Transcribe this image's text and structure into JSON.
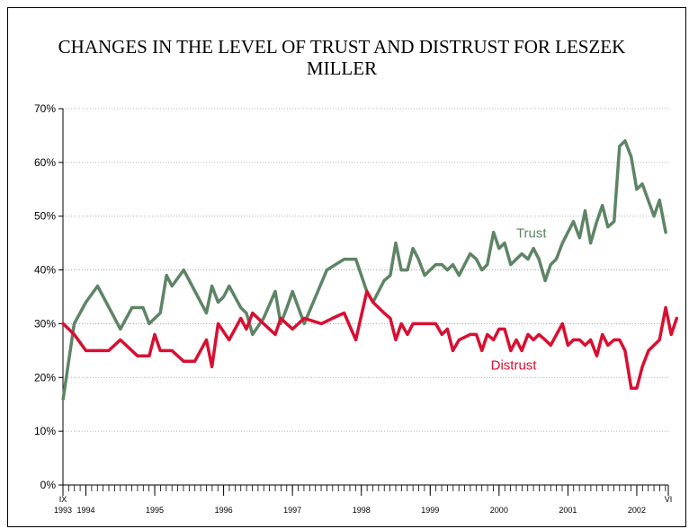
{
  "chart_data": {
    "type": "line",
    "title": "CHANGES IN THE LEVEL OF TRUST AND DISTRUST FOR LESZEK MILLER",
    "ylim": [
      0,
      70
    ],
    "yticks": [
      "0%",
      "10%",
      "20%",
      "30%",
      "40%",
      "50%",
      "60%",
      "70%"
    ],
    "grid": true,
    "xlim": [
      1993.667,
      2002.458
    ],
    "xticks": [
      {
        "x": 1993.667,
        "top": "IX",
        "bottom": "1993"
      },
      {
        "x": 1994.0,
        "top": "",
        "bottom": "1994"
      },
      {
        "x": 1995.0,
        "top": "",
        "bottom": "1995"
      },
      {
        "x": 1996.0,
        "top": "",
        "bottom": "1996"
      },
      {
        "x": 1997.0,
        "top": "",
        "bottom": "1997"
      },
      {
        "x": 1998.0,
        "top": "",
        "bottom": "1998"
      },
      {
        "x": 1999.0,
        "top": "",
        "bottom": "1999"
      },
      {
        "x": 2000.0,
        "top": "",
        "bottom": "2000"
      },
      {
        "x": 2001.0,
        "top": "",
        "bottom": "2001"
      },
      {
        "x": 2002.0,
        "top": "",
        "bottom": "2002"
      },
      {
        "x": 2002.458,
        "top": "VI",
        "bottom": ""
      }
    ],
    "series": [
      {
        "name": "Trust",
        "color": "#5e8466",
        "label_at": [
          2000.25,
          46
        ],
        "points": [
          [
            1993.67,
            16
          ],
          [
            1993.83,
            30
          ],
          [
            1994.0,
            34
          ],
          [
            1994.17,
            37
          ],
          [
            1994.5,
            29
          ],
          [
            1994.67,
            33
          ],
          [
            1994.83,
            33
          ],
          [
            1994.92,
            30
          ],
          [
            1995.08,
            32
          ],
          [
            1995.17,
            39
          ],
          [
            1995.25,
            37
          ],
          [
            1995.42,
            40
          ],
          [
            1995.75,
            32
          ],
          [
            1995.83,
            37
          ],
          [
            1995.92,
            34
          ],
          [
            1996.0,
            35
          ],
          [
            1996.08,
            37
          ],
          [
            1996.25,
            33
          ],
          [
            1996.33,
            32
          ],
          [
            1996.42,
            28
          ],
          [
            1996.58,
            31
          ],
          [
            1996.75,
            36
          ],
          [
            1996.83,
            30
          ],
          [
            1996.92,
            33
          ],
          [
            1997.0,
            36
          ],
          [
            1997.17,
            30
          ],
          [
            1997.5,
            40
          ],
          [
            1997.75,
            42
          ],
          [
            1997.92,
            42
          ],
          [
            1998.08,
            36
          ],
          [
            1998.17,
            34
          ],
          [
            1998.33,
            38
          ],
          [
            1998.42,
            39
          ],
          [
            1998.5,
            45
          ],
          [
            1998.58,
            40
          ],
          [
            1998.67,
            40
          ],
          [
            1998.75,
            44
          ],
          [
            1998.83,
            42
          ],
          [
            1998.92,
            39
          ],
          [
            1999.08,
            41
          ],
          [
            1999.17,
            41
          ],
          [
            1999.25,
            40
          ],
          [
            1999.33,
            41
          ],
          [
            1999.42,
            39
          ],
          [
            1999.58,
            43
          ],
          [
            1999.67,
            42
          ],
          [
            1999.75,
            40
          ],
          [
            1999.83,
            41
          ],
          [
            1999.92,
            47
          ],
          [
            2000.0,
            44
          ],
          [
            2000.08,
            45
          ],
          [
            2000.17,
            41
          ],
          [
            2000.33,
            43
          ],
          [
            2000.42,
            42
          ],
          [
            2000.5,
            44
          ],
          [
            2000.58,
            42
          ],
          [
            2000.67,
            38
          ],
          [
            2000.75,
            41
          ],
          [
            2000.83,
            42
          ],
          [
            2000.92,
            45
          ],
          [
            2001.08,
            49
          ],
          [
            2001.17,
            46
          ],
          [
            2001.25,
            51
          ],
          [
            2001.33,
            45
          ],
          [
            2001.42,
            49
          ],
          [
            2001.5,
            52
          ],
          [
            2001.58,
            48
          ],
          [
            2001.67,
            49
          ],
          [
            2001.75,
            63
          ],
          [
            2001.83,
            64
          ],
          [
            2001.92,
            61
          ],
          [
            2002.0,
            55
          ],
          [
            2002.08,
            56
          ],
          [
            2002.25,
            50
          ],
          [
            2002.33,
            53
          ],
          [
            2002.42,
            47
          ]
        ]
      },
      {
        "name": "Distrust",
        "color": "#d90f32",
        "label_at": [
          1999.88,
          21.5
        ],
        "points": [
          [
            1993.67,
            30
          ],
          [
            1993.83,
            28
          ],
          [
            1994.0,
            25
          ],
          [
            1994.17,
            25
          ],
          [
            1994.33,
            25
          ],
          [
            1994.5,
            27
          ],
          [
            1994.75,
            24
          ],
          [
            1994.92,
            24
          ],
          [
            1995.0,
            28
          ],
          [
            1995.08,
            25
          ],
          [
            1995.25,
            25
          ],
          [
            1995.42,
            23
          ],
          [
            1995.58,
            23
          ],
          [
            1995.75,
            27
          ],
          [
            1995.83,
            22
          ],
          [
            1995.92,
            30
          ],
          [
            1996.08,
            27
          ],
          [
            1996.25,
            31
          ],
          [
            1996.33,
            29
          ],
          [
            1996.42,
            32
          ],
          [
            1996.58,
            30
          ],
          [
            1996.75,
            28
          ],
          [
            1996.83,
            31
          ],
          [
            1997.0,
            29
          ],
          [
            1997.17,
            31
          ],
          [
            1997.42,
            30
          ],
          [
            1997.58,
            31
          ],
          [
            1997.75,
            32
          ],
          [
            1997.92,
            27
          ],
          [
            1998.08,
            36
          ],
          [
            1998.17,
            34
          ],
          [
            1998.33,
            32
          ],
          [
            1998.42,
            31
          ],
          [
            1998.5,
            27
          ],
          [
            1998.58,
            30
          ],
          [
            1998.67,
            28
          ],
          [
            1998.75,
            30
          ],
          [
            1998.83,
            30
          ],
          [
            1998.92,
            30
          ],
          [
            1999.08,
            30
          ],
          [
            1999.17,
            28
          ],
          [
            1999.25,
            29
          ],
          [
            1999.33,
            25
          ],
          [
            1999.42,
            27
          ],
          [
            1999.58,
            28
          ],
          [
            1999.67,
            28
          ],
          [
            1999.75,
            25
          ],
          [
            1999.83,
            28
          ],
          [
            1999.92,
            27
          ],
          [
            2000.0,
            29
          ],
          [
            2000.08,
            29
          ],
          [
            2000.17,
            25
          ],
          [
            2000.25,
            27
          ],
          [
            2000.33,
            25
          ],
          [
            2000.42,
            28
          ],
          [
            2000.5,
            27
          ],
          [
            2000.58,
            28
          ],
          [
            2000.67,
            27
          ],
          [
            2000.75,
            26
          ],
          [
            2000.92,
            30
          ],
          [
            2001.0,
            26
          ],
          [
            2001.08,
            27
          ],
          [
            2001.17,
            27
          ],
          [
            2001.25,
            26
          ],
          [
            2001.33,
            27
          ],
          [
            2001.42,
            24
          ],
          [
            2001.5,
            28
          ],
          [
            2001.58,
            26
          ],
          [
            2001.67,
            27
          ],
          [
            2001.75,
            27
          ],
          [
            2001.83,
            25
          ],
          [
            2001.92,
            18
          ],
          [
            2002.0,
            18
          ],
          [
            2002.08,
            22
          ],
          [
            2002.17,
            25
          ],
          [
            2002.33,
            27
          ],
          [
            2002.42,
            33
          ],
          [
            2002.5,
            28
          ],
          [
            2002.58,
            31
          ]
        ]
      }
    ]
  }
}
